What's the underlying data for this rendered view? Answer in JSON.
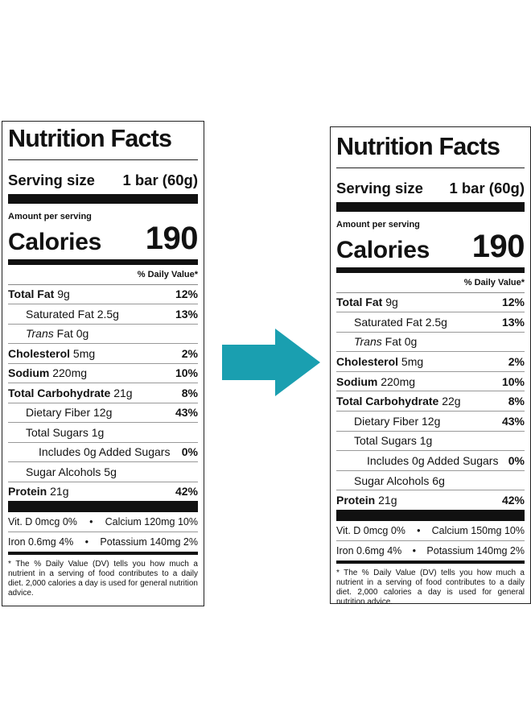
{
  "left": {
    "title": "Nutrition Facts",
    "serving_label": "Serving size",
    "serving_value": "1 bar (60g)",
    "amount_per_serving": "Amount per serving",
    "calories_label": "Calories",
    "calories_value": "190",
    "dv_header": "% Daily Value*",
    "total_fat": {
      "label": "Total Fat",
      "amount": "9g",
      "dv": "12%"
    },
    "saturated_fat": {
      "label": "Saturated Fat 2.5g",
      "dv": "13%"
    },
    "trans_fat": {
      "label": "Trans",
      "rest": "Fat 0g"
    },
    "cholesterol": {
      "label": "Cholesterol",
      "amount": "5mg",
      "dv": "2%"
    },
    "sodium": {
      "label": "Sodium",
      "amount": "220mg",
      "dv": "10%"
    },
    "total_carb": {
      "label": "Total Carbohydrate",
      "amount": "21g",
      "dv": "8%"
    },
    "dietary_fiber": {
      "label": "Dietary Fiber 12g",
      "dv": "43%"
    },
    "total_sugars": {
      "label": "Total Sugars 1g"
    },
    "added_sugars": {
      "label": "Includes 0g Added Sugars",
      "dv": "0%"
    },
    "sugar_alcohols": {
      "label": "Sugar Alcohols 5g"
    },
    "protein": {
      "label": "Protein",
      "amount": "21g",
      "dv": "42%"
    },
    "vitd": "Vit. D 0mcg 0%",
    "calcium": "Calcium 120mg 10%",
    "iron": "Iron 0.6mg 4%",
    "potassium": "Potassium 140mg 2%",
    "bullet": "•",
    "footnote": "* The % Daily Value (DV) tells you how much a nutrient in a serving of food contributes to a daily diet. 2,000 calories a day is used for general nutrition advice."
  },
  "right": {
    "title": "Nutrition Facts",
    "serving_label": "Serving size",
    "serving_value": "1 bar (60g)",
    "amount_per_serving": "Amount per serving",
    "calories_label": "Calories",
    "calories_value": "190",
    "dv_header": "% Daily Value*",
    "total_fat": {
      "label": "Total Fat",
      "amount": "9g",
      "dv": "12%"
    },
    "saturated_fat": {
      "label": "Saturated Fat 2.5g",
      "dv": "13%"
    },
    "trans_fat": {
      "label": "Trans",
      "rest": "Fat 0g"
    },
    "cholesterol": {
      "label": "Cholesterol",
      "amount": "5mg",
      "dv": "2%"
    },
    "sodium": {
      "label": "Sodium",
      "amount": "220mg",
      "dv": "10%"
    },
    "total_carb": {
      "label": "Total Carbohydrate",
      "amount": "22g",
      "dv": "8%"
    },
    "dietary_fiber": {
      "label": "Dietary Fiber 12g",
      "dv": "43%"
    },
    "total_sugars": {
      "label": "Total Sugars 1g"
    },
    "added_sugars": {
      "label": "Includes 0g Added Sugars",
      "dv": "0%"
    },
    "sugar_alcohols": {
      "label": "Sugar Alcohols 6g"
    },
    "protein": {
      "label": "Protein",
      "amount": "21g",
      "dv": "42%"
    },
    "vitd": "Vit. D 0mcg 0%",
    "calcium": "Calcium 150mg 10%",
    "iron": "Iron 0.6mg 4%",
    "potassium": "Potassium 140mg 2%",
    "bullet": "•",
    "footnote": "* The % Daily Value (DV) tells you how much a nutrient in a serving of food contributes to a daily diet. 2,000 calories a day is used for general nutrition advice."
  },
  "arrow": {
    "icon": "arrow-right-icon",
    "color": "#1a9fb0"
  }
}
